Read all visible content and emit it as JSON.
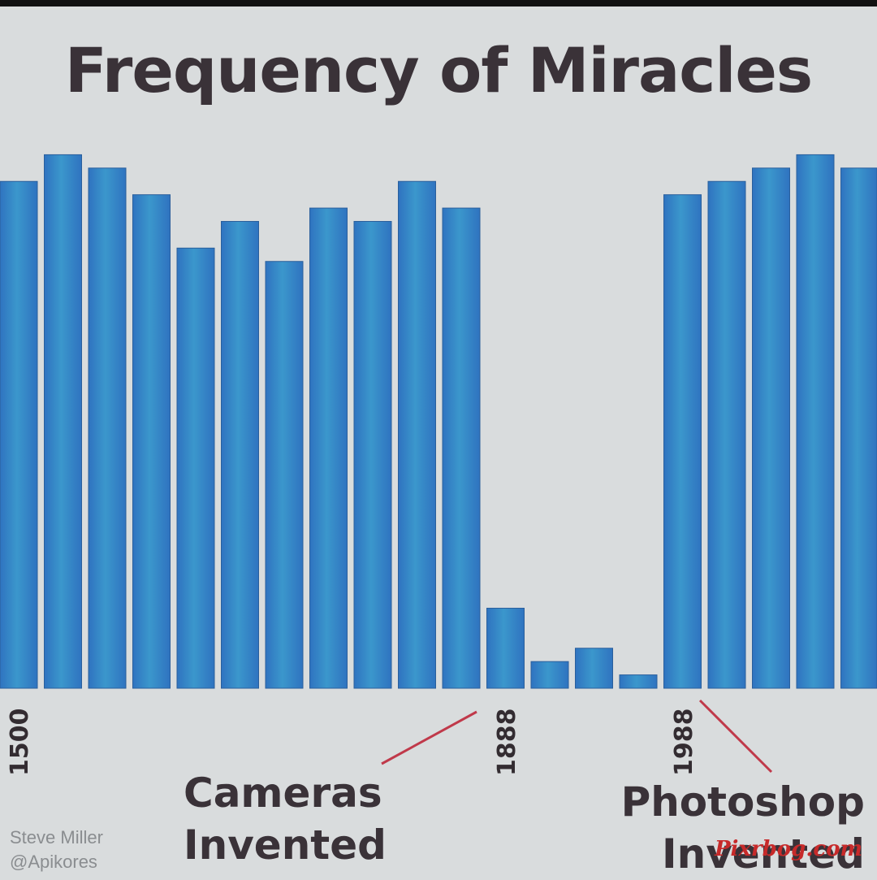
{
  "chart_data": {
    "type": "bar",
    "title": "Frequency of Miracles",
    "values": [
      38,
      40,
      39,
      37,
      33,
      35,
      32,
      36,
      35,
      38,
      36,
      6,
      2,
      3,
      1,
      37,
      38,
      39,
      40,
      39
    ],
    "ylim": [
      0,
      41
    ],
    "grid": false,
    "legend": "none",
    "tick_labels": [
      {
        "label": "1500",
        "bar_index": 0
      },
      {
        "label": "1888",
        "bar_index": 11
      },
      {
        "label": "1988",
        "bar_index": 15
      }
    ],
    "annotations": [
      {
        "id": "cameras",
        "lines": [
          "Cameras",
          "Invented"
        ],
        "points_to": "1888"
      },
      {
        "id": "photoshop",
        "lines": [
          "Photoshop",
          "Invented"
        ],
        "points_to": "1988"
      }
    ]
  },
  "colors": {
    "background": "#d9dcdd",
    "bar_dark": "#2f73c0",
    "bar_light": "#3b97cc",
    "annotation_line": "#c0394a",
    "title": "#3a3238"
  },
  "credit": {
    "line1": "Steve Miller",
    "line2": "@Apikores"
  },
  "watermark": "Pixrbog.com"
}
